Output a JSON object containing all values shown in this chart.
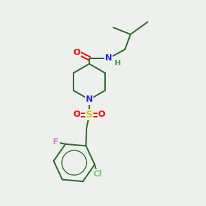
{
  "background_color": "#edf0ed",
  "bond_color": "#2d6b2d",
  "atom_colors": {
    "O": "#ff0000",
    "N": "#2020ee",
    "S": "#cccc00",
    "Cl": "#7fcc7f",
    "F": "#cc88cc",
    "H": "#40a040",
    "C": "#2d6b2d"
  },
  "figsize": [
    3.0,
    3.0
  ],
  "dpi": 100
}
